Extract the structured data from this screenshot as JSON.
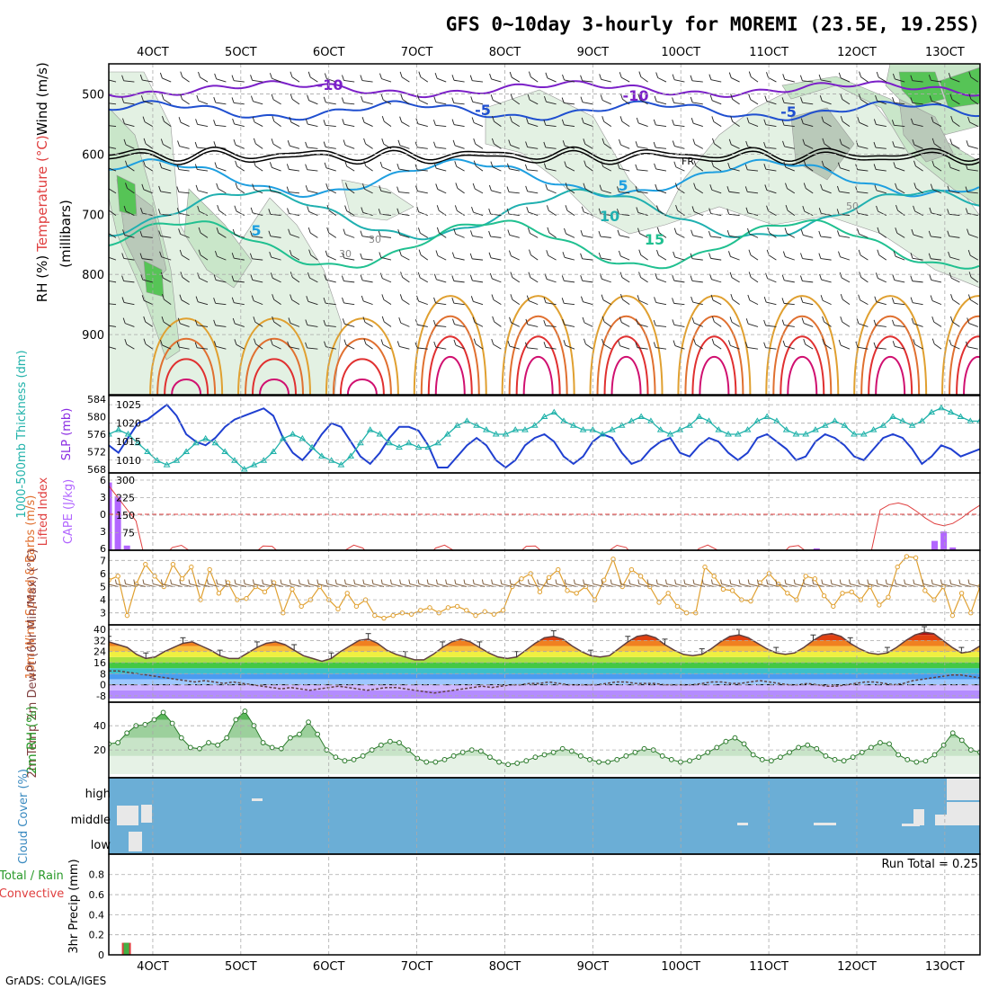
{
  "title": "GFS 0~10day 3-hourly for MOREMI (23.5E, 19.25S)",
  "credit": "GrADS: COLA/IGES",
  "x_axis": {
    "labels": [
      "4OCT",
      "5OCT",
      "6OCT",
      "7OCT",
      "8OCT",
      "9OCT",
      "10OCT",
      "11OCT",
      "12OCT",
      "13OCT"
    ]
  },
  "colors": {
    "frame": "#000000",
    "grid": "#aaaaaa",
    "rh_fill": "#44cc44",
    "temp_purple": "#8a2be2",
    "slp_line": "#1f3fd0",
    "thick_line": "#20b2aa",
    "cape_bar": "#b266ff",
    "li_line": "#e04040",
    "wind_line": "#e0a030",
    "cloud_bg": "#6baed6"
  },
  "chart_data": [
    {
      "panel": "upper-air",
      "type": "contour",
      "ylabels": [
        "Temperature (°C)",
        "Wind (m/s)",
        "RH (%)"
      ],
      "yaxis_title": "(millibars)",
      "yticks": [
        500,
        600,
        700,
        800,
        900
      ],
      "ylim": [
        1000,
        450
      ],
      "contour_labels": [
        "-10",
        "-10",
        "-5",
        "-5",
        "5",
        "5",
        "10",
        "15",
        "FR",
        "30",
        "30",
        "50"
      ]
    },
    {
      "panel": "slp-thickness",
      "type": "line",
      "ylabel_left": "1000-500mb Thickness (dm)",
      "ylabel_right": "SLP (mb)",
      "yticks_left": [
        584,
        580,
        576,
        572,
        568
      ],
      "yticks_right": [
        1025,
        1020,
        1015,
        1010
      ],
      "series": [
        {
          "name": "SLP",
          "values": [
            1014,
            1012,
            1016,
            1020,
            1021,
            1023,
            1025,
            1022,
            1017,
            1015,
            1014,
            1016,
            1019,
            1021,
            1022,
            1023,
            1024,
            1022,
            1016,
            1012,
            1010,
            1013,
            1017,
            1020,
            1019,
            1015,
            1011,
            1009,
            1012,
            1016,
            1019,
            1019,
            1018,
            1014,
            1008,
            1008,
            1011,
            1014,
            1016,
            1014,
            1010,
            1008,
            1010,
            1014,
            1016,
            1017,
            1015,
            1011,
            1009,
            1011,
            1015,
            1017,
            1016,
            1012,
            1009,
            1010,
            1013,
            1015,
            1016,
            1012,
            1011,
            1014,
            1016,
            1015,
            1012,
            1010,
            1012,
            1016,
            1017,
            1015,
            1013,
            1010,
            1011,
            1015,
            1017,
            1016,
            1014,
            1011,
            1010,
            1013,
            1016,
            1017,
            1016,
            1013,
            1009,
            1011,
            1014,
            1013,
            1011,
            1012,
            1013
          ]
        },
        {
          "name": "Thickness",
          "values": [
            576,
            577,
            576,
            574,
            572,
            570,
            569,
            570,
            572,
            574,
            575,
            574,
            572,
            570,
            568,
            569,
            570,
            572,
            575,
            576,
            575,
            573,
            571,
            570,
            569,
            571,
            574,
            577,
            576,
            574,
            573,
            574,
            573,
            573,
            574,
            576,
            578,
            579,
            578,
            577,
            576,
            576,
            577,
            577,
            578,
            580,
            581,
            579,
            578,
            577,
            577,
            576,
            577,
            578,
            579,
            580,
            579,
            577,
            576,
            577,
            578,
            580,
            579,
            577,
            576,
            576,
            577,
            579,
            580,
            579,
            577,
            576,
            576,
            577,
            578,
            579,
            578,
            576,
            576,
            577,
            578,
            580,
            579,
            578,
            579,
            581,
            582,
            581,
            580,
            579,
            579
          ]
        }
      ]
    },
    {
      "panel": "li-cape",
      "type": "bar+line",
      "ylabel_left": "Lifted Index",
      "ylabel_right": "CAPE (J/kg)",
      "yticks_left": [
        -6,
        -3,
        0,
        3,
        6
      ],
      "yticks_right": [
        300,
        225,
        150,
        75
      ],
      "cape_values": [
        290,
        230,
        20,
        0,
        0,
        0,
        0,
        0,
        0,
        0,
        0,
        0,
        0,
        0,
        0,
        0,
        0,
        0,
        0,
        0,
        0,
        0,
        0,
        0,
        0,
        0,
        0,
        0,
        0,
        0,
        0,
        0,
        0,
        0,
        0,
        0,
        0,
        0,
        0,
        0,
        0,
        0,
        0,
        0,
        0,
        0,
        0,
        0,
        0,
        0,
        0,
        0,
        0,
        0,
        0,
        0,
        0,
        0,
        0,
        0,
        0,
        0,
        0,
        0,
        0,
        0,
        0,
        0,
        0,
        0,
        0,
        0,
        0,
        0,
        0,
        0,
        0,
        0,
        8,
        0,
        0,
        0,
        0,
        0,
        0,
        0,
        0,
        0,
        0,
        0,
        0,
        40,
        80,
        12,
        0,
        0,
        0
      ]
    },
    {
      "panel": "10m-wind",
      "type": "line",
      "ylabel": "10m Wind Speed & Barbs (m/s)",
      "yticks": [
        7,
        6,
        5,
        4,
        3
      ],
      "values": [
        5.5,
        5.8,
        2.8,
        5.2,
        6.7,
        5.8,
        5.0,
        6.7,
        5.6,
        6.5,
        4.0,
        6.3,
        4.5,
        5.3,
        4.0,
        4.1,
        5.0,
        4.6,
        5.3,
        3.0,
        4.8,
        3.5,
        4.0,
        5.0,
        4.0,
        3.3,
        4.5,
        3.5,
        4.0,
        2.8,
        2.6,
        2.8,
        3.0,
        2.9,
        3.2,
        3.4,
        3.0,
        3.4,
        3.5,
        3.2,
        2.8,
        3.1,
        2.9,
        3.2,
        5.0,
        5.6,
        6.0,
        4.6,
        5.7,
        6.3,
        4.7,
        4.5,
        5.0,
        4.0,
        5.5,
        7.1,
        5.0,
        6.3,
        5.8,
        5.0,
        3.8,
        4.5,
        3.5,
        3.0,
        3.0,
        6.5,
        5.8,
        4.8,
        4.7,
        4.0,
        3.9,
        5.3,
        6.0,
        5.2,
        4.5,
        4.0,
        5.8,
        5.6,
        4.3,
        3.5,
        4.5,
        4.6,
        4.0,
        5.0,
        3.6,
        4.2,
        6.5,
        7.3,
        7.2,
        4.7,
        4.0,
        5.0,
        2.8,
        4.5,
        3.0,
        5.0
      ]
    },
    {
      "panel": "2m-temp",
      "type": "area+line",
      "ylabel": "2m Temp 2m DewPt (6hr Min/Max) (°C)",
      "yticks": [
        40,
        32,
        24,
        16,
        8,
        0,
        -8
      ],
      "temp_values": [
        31,
        29,
        27,
        22,
        19,
        20,
        24,
        27,
        30,
        31,
        28,
        25,
        21,
        19,
        19,
        23,
        27,
        30,
        31,
        29,
        25,
        21,
        19,
        17,
        19,
        24,
        28,
        32,
        33,
        30,
        25,
        22,
        20,
        18,
        18,
        22,
        27,
        31,
        33,
        31,
        27,
        23,
        20,
        19,
        20,
        25,
        30,
        34,
        35,
        33,
        28,
        24,
        21,
        20,
        21,
        26,
        31,
        35,
        36,
        34,
        29,
        25,
        22,
        21,
        22,
        26,
        31,
        35,
        36,
        34,
        30,
        26,
        23,
        22,
        23,
        27,
        32,
        36,
        37,
        35,
        30,
        26,
        23,
        22,
        23,
        27,
        32,
        36,
        38,
        37,
        32,
        27,
        23,
        24,
        28
      ],
      "dewpt_values": [
        10,
        10,
        9,
        8,
        7,
        6,
        5,
        4,
        3,
        2,
        3,
        2,
        1,
        2,
        1,
        0,
        -1,
        -2,
        -3,
        -2,
        -3,
        -4,
        -3,
        -2,
        -1,
        -2,
        -3,
        -4,
        -3,
        -2,
        -2,
        -3,
        -4,
        -5,
        -6,
        -5,
        -4,
        -3,
        -2,
        -1,
        -2,
        -1,
        0,
        0,
        1,
        1,
        2,
        1,
        0,
        0,
        0,
        0,
        1,
        2,
        2,
        1,
        1,
        1,
        0,
        0,
        0,
        0,
        1,
        2,
        2,
        1,
        1,
        2,
        3,
        2,
        1,
        0,
        0,
        1,
        0,
        -1,
        -1,
        0,
        1,
        2,
        2,
        1,
        0,
        1,
        3,
        4,
        5,
        6,
        7,
        7,
        6,
        5
      ]
    },
    {
      "panel": "2m-rh",
      "type": "area+line",
      "ylabel": "2m RH (%)",
      "yticks": [
        40,
        20
      ],
      "values": [
        25,
        26,
        34,
        40,
        41,
        45,
        51,
        42,
        30,
        22,
        21,
        26,
        24,
        30,
        45,
        52,
        40,
        26,
        22,
        21,
        30,
        33,
        43,
        33,
        20,
        14,
        11,
        12,
        15,
        20,
        24,
        27,
        26,
        20,
        13,
        10,
        10,
        12,
        15,
        18,
        20,
        19,
        14,
        10,
        8,
        9,
        11,
        14,
        16,
        18,
        21,
        19,
        15,
        12,
        10,
        10,
        12,
        15,
        18,
        21,
        20,
        15,
        12,
        10,
        11,
        14,
        18,
        22,
        27,
        30,
        25,
        16,
        12,
        11,
        14,
        18,
        22,
        24,
        21,
        15,
        12,
        11,
        14,
        18,
        22,
        26,
        25,
        16,
        12,
        10,
        11,
        16,
        24,
        34,
        28,
        20,
        18
      ]
    },
    {
      "panel": "cloud-cover",
      "type": "heatmap",
      "ylabel": "Cloud Cover (%)",
      "levels": [
        "high",
        "middle",
        "low"
      ]
    },
    {
      "panel": "precip",
      "type": "bar",
      "ylabel_left": "Total / Rain Convective",
      "ylabel_right": "3hr Precip (mm)",
      "yticks": [
        0.8,
        0.6,
        0.4,
        0.2,
        0
      ],
      "run_total": "Run Total = 0.25",
      "values": [
        0,
        0,
        0.12,
        0,
        0
      ]
    }
  ]
}
